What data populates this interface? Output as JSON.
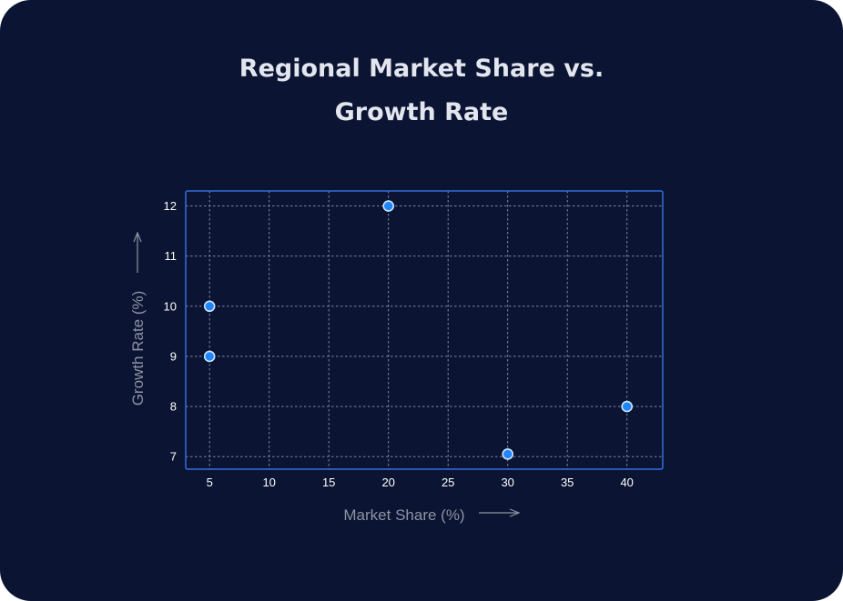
{
  "chart_data": {
    "type": "scatter",
    "title_lines": [
      "Regional Market Share vs.",
      "Growth Rate"
    ],
    "xlabel": "Market Share (%)",
    "ylabel": "Growth Rate (%)",
    "xlim": [
      3,
      43
    ],
    "ylim": [
      6.75,
      12.3
    ],
    "xticks": [
      5,
      10,
      15,
      20,
      25,
      30,
      35,
      40
    ],
    "yticks": [
      7,
      8,
      9,
      10,
      11,
      12
    ],
    "grid": true,
    "legend": "none",
    "points": [
      {
        "x": 5,
        "y": 10
      },
      {
        "x": 5,
        "y": 9
      },
      {
        "x": 20,
        "y": 12
      },
      {
        "x": 30,
        "y": 7.05
      },
      {
        "x": 40,
        "y": 8
      }
    ]
  },
  "colors": {
    "background": "#0b1432",
    "plot_border": "#2f6fe0",
    "grid": "#8c96b4",
    "point_fill": "#1f86ff",
    "point_stroke": "#cfe6ff",
    "axis_title": "#8d93a3",
    "tick_label": "#ffffff",
    "title": "#e3e6ee"
  }
}
